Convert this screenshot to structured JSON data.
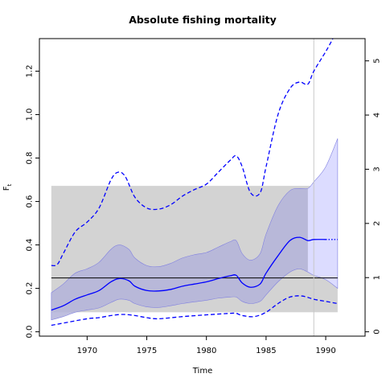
{
  "chart_data": {
    "type": "line",
    "title": "Absolute fishing mortality",
    "xlabel": "Time",
    "ylabel": "F",
    "ylabel_subscript": "t",
    "xlim": [
      1966,
      1993.3
    ],
    "ylim": [
      -0.02,
      1.35
    ],
    "x_ticks": [
      1970,
      1975,
      1980,
      1985,
      1990
    ],
    "y_ticks": [
      0.0,
      0.2,
      0.4,
      0.6,
      0.8,
      1.0,
      1.2
    ],
    "y_tick_labels": [
      "0.0",
      "0.2",
      "0.4",
      "0.6",
      "0.8",
      "1.0",
      "1.2"
    ],
    "right_axis": {
      "scale_factor": 0.2495,
      "ticks": [
        0,
        1,
        2,
        3,
        4,
        5
      ],
      "tick_labels": [
        "0",
        "1",
        "2",
        "3",
        "4",
        "5"
      ]
    },
    "grey_band": {
      "x": [
        1967,
        1991
      ],
      "y": [
        0.09,
        0.672
      ]
    },
    "reference_hline": 0.248,
    "vertical_line": 1989,
    "colors": {
      "main": "#0000ff",
      "inner_band": "#b3b3d9",
      "inner_band_edge": "#8080e0",
      "forecast_band": "#dcdcff",
      "grey_band": "#d3d3d3",
      "hline": "#000000",
      "vline": "#c8c8c8"
    },
    "series": [
      {
        "role": "estimate",
        "style": "solid",
        "x": [
          1967,
          1968,
          1969,
          1970,
          1971,
          1972,
          1972.7,
          1973.5,
          1974,
          1975,
          1976,
          1977,
          1978,
          1979,
          1980,
          1981,
          1982,
          1982.5,
          1983,
          1983.7,
          1984.5,
          1985,
          1986,
          1987,
          1987.8,
          1988.5,
          1989,
          1990
        ],
        "values": [
          0.1,
          0.12,
          0.15,
          0.17,
          0.19,
          0.23,
          0.245,
          0.235,
          0.21,
          0.19,
          0.188,
          0.195,
          0.21,
          0.22,
          0.23,
          0.245,
          0.258,
          0.26,
          0.225,
          0.205,
          0.22,
          0.27,
          0.35,
          0.42,
          0.435,
          0.42,
          0.425,
          0.425
        ]
      },
      {
        "role": "estimate-forecast",
        "style": "dotted",
        "x": [
          1990,
          1991
        ],
        "values": [
          0.425,
          0.425
        ]
      },
      {
        "role": "ci-lower",
        "style": "dashed",
        "x": [
          1967,
          1968,
          1970,
          1971,
          1972,
          1973,
          1974,
          1975,
          1976,
          1978,
          1980,
          1982,
          1982.5,
          1983,
          1984,
          1985,
          1986,
          1987,
          1988,
          1989,
          1990,
          1991
        ],
        "values": [
          0.03,
          0.04,
          0.06,
          0.065,
          0.075,
          0.08,
          0.075,
          0.065,
          0.06,
          0.07,
          0.078,
          0.085,
          0.085,
          0.075,
          0.07,
          0.09,
          0.13,
          0.16,
          0.165,
          0.15,
          0.14,
          0.13
        ]
      },
      {
        "role": "ci-upper",
        "style": "dashed",
        "x": [
          1967,
          1967.5,
          1968,
          1969,
          1970,
          1971,
          1972,
          1972.6,
          1973.2,
          1974,
          1975,
          1976,
          1977,
          1978,
          1979,
          1980,
          1981,
          1982,
          1982.5,
          1983,
          1983.7,
          1984.5,
          1985,
          1986,
          1987,
          1987.8,
          1988.5,
          1989,
          1990,
          1990.6
        ],
        "values": [
          0.305,
          0.31,
          0.36,
          0.46,
          0.505,
          0.57,
          0.7,
          0.735,
          0.715,
          0.62,
          0.57,
          0.565,
          0.585,
          0.625,
          0.655,
          0.68,
          0.735,
          0.79,
          0.81,
          0.76,
          0.64,
          0.64,
          0.76,
          1.0,
          1.12,
          1.15,
          1.14,
          1.2,
          1.29,
          1.35
        ]
      },
      {
        "role": "band-upper",
        "style": "band",
        "x": [
          1967,
          1968,
          1969,
          1970,
          1971,
          1972,
          1972.7,
          1973.5,
          1974,
          1975,
          1976,
          1977,
          1978,
          1979,
          1980,
          1981,
          1982,
          1982.5,
          1983,
          1983.7,
          1984.5,
          1985,
          1986,
          1987,
          1987.8,
          1988.5,
          1989,
          1990,
          1991
        ],
        "values": [
          0.18,
          0.22,
          0.27,
          0.29,
          0.32,
          0.38,
          0.4,
          0.38,
          0.34,
          0.305,
          0.3,
          0.315,
          0.34,
          0.355,
          0.365,
          0.39,
          0.415,
          0.42,
          0.36,
          0.33,
          0.36,
          0.45,
          0.58,
          0.65,
          0.66,
          0.66,
          0.69,
          0.76,
          0.89
        ]
      },
      {
        "role": "band-lower",
        "style": "band",
        "x": [
          1967,
          1968,
          1969,
          1970,
          1971,
          1972,
          1972.7,
          1973.5,
          1974,
          1975,
          1976,
          1977,
          1978,
          1979,
          1980,
          1981,
          1982,
          1982.5,
          1983,
          1983.7,
          1984.5,
          1985,
          1986,
          1987,
          1987.8,
          1988.5,
          1989,
          1990,
          1991
        ],
        "values": [
          0.055,
          0.07,
          0.09,
          0.1,
          0.11,
          0.135,
          0.15,
          0.145,
          0.13,
          0.115,
          0.112,
          0.12,
          0.13,
          0.138,
          0.145,
          0.155,
          0.16,
          0.16,
          0.14,
          0.13,
          0.14,
          0.17,
          0.23,
          0.275,
          0.29,
          0.275,
          0.26,
          0.24,
          0.2
        ]
      }
    ]
  }
}
